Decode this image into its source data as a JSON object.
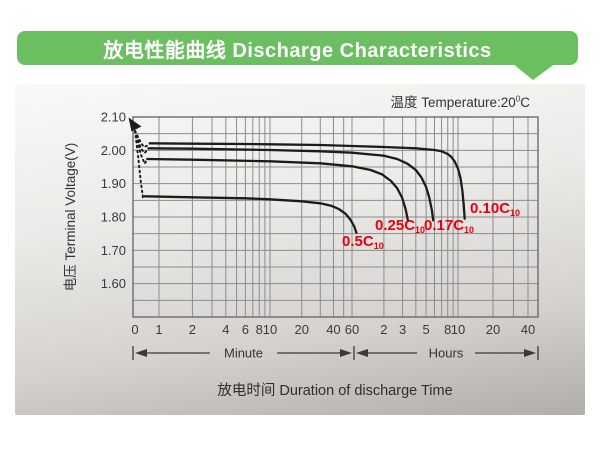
{
  "header": {
    "title": "放电性能曲线 Discharge Characteristics",
    "bg_color": "#6bbf61"
  },
  "panel": {
    "temperature": {
      "prefix": "温度  Temperature:20",
      "sup": "0",
      "suffix": "C"
    }
  },
  "chart_data": {
    "type": "line",
    "title": "放电性能曲线 Discharge Characteristics",
    "xlabel": "放电时间  Duration of discharge Time",
    "ylabel": "电压 Terminal Voltage(V)",
    "temperature_note": "温度 Temperature:20°C",
    "grid": true,
    "colors": {
      "curve": "#1c1c1c",
      "grid": "#8c8c8c",
      "border": "#6b6b6b",
      "label_red": "#e60012",
      "text": "#3a3a3a"
    },
    "x_axis": {
      "scale": "log-piecewise",
      "unit_groups": [
        {
          "label": "Minute"
        },
        {
          "label": "Hours"
        }
      ],
      "ticks_minutes": [
        {
          "t": 0,
          "label": "0"
        },
        {
          "t": 1,
          "label": "1"
        },
        {
          "t": 2,
          "label": "2"
        },
        {
          "t": 4,
          "label": "4"
        },
        {
          "t": 6,
          "label": "6"
        },
        {
          "t": 8,
          "label": "8"
        },
        {
          "t": 10,
          "label": "10"
        },
        {
          "t": 20,
          "label": "20"
        },
        {
          "t": 40,
          "label": "40"
        },
        {
          "t": 60,
          "label": "60"
        },
        {
          "t": 120,
          "label": "2"
        },
        {
          "t": 180,
          "label": "3"
        },
        {
          "t": 300,
          "label": "5"
        },
        {
          "t": 480,
          "label": "8"
        },
        {
          "t": 600,
          "label": "10"
        },
        {
          "t": 1200,
          "label": "20"
        },
        {
          "t": 2400,
          "label": "40"
        }
      ],
      "minor_ticks_minutes": [
        3,
        5,
        7,
        9,
        30,
        50,
        240,
        360,
        420,
        540,
        1800
      ]
    },
    "y_axis": {
      "min": 1.5,
      "max": 2.1,
      "grid_step": 0.05,
      "labeled": [
        2.1,
        2.0,
        1.9,
        1.8,
        1.7,
        1.6
      ]
    },
    "start_point": {
      "t_minutes": 0.08,
      "voltage": 2.058
    },
    "series": [
      {
        "name": "0.10C10",
        "label": "0.10C",
        "label_sub": "10",
        "dip_points": [
          [
            0.08,
            2.058
          ],
          [
            0.28,
            2.026
          ],
          [
            0.42,
            2.01
          ],
          [
            0.55,
            2.014
          ],
          [
            0.65,
            2.021
          ]
        ],
        "points": [
          [
            0.65,
            2.021
          ],
          [
            2,
            2.02
          ],
          [
            6,
            2.019
          ],
          [
            10,
            2.018
          ],
          [
            30,
            2.016
          ],
          [
            60,
            2.013
          ],
          [
            120,
            2.01
          ],
          [
            240,
            2.006
          ],
          [
            360,
            2.001
          ],
          [
            420,
            1.997
          ],
          [
            480,
            1.989
          ],
          [
            520,
            1.98
          ],
          [
            560,
            1.966
          ],
          [
            600,
            1.945
          ],
          [
            630,
            1.917
          ],
          [
            655,
            1.878
          ],
          [
            672,
            1.836
          ],
          [
            685,
            1.795
          ]
        ]
      },
      {
        "name": "0.17C10",
        "label": "0.17C",
        "label_sub": "10",
        "dip_points": [
          [
            0.08,
            2.058
          ],
          [
            0.3,
            2.006
          ],
          [
            0.45,
            1.992
          ],
          [
            0.6,
            2.006
          ]
        ],
        "points": [
          [
            0.6,
            2.006
          ],
          [
            2,
            2.005
          ],
          [
            10,
            2.001
          ],
          [
            30,
            1.997
          ],
          [
            60,
            1.993
          ],
          [
            120,
            1.984
          ],
          [
            160,
            1.974
          ],
          [
            200,
            1.96
          ],
          [
            240,
            1.941
          ],
          [
            272,
            1.918
          ],
          [
            300,
            1.89
          ],
          [
            322,
            1.858
          ],
          [
            340,
            1.82
          ],
          [
            350,
            1.79
          ]
        ]
      },
      {
        "name": "0.25C10",
        "label": "0.25C",
        "label_sub": "10",
        "dip_points": [
          [
            0.08,
            2.058
          ],
          [
            0.3,
            1.988
          ],
          [
            0.45,
            1.96
          ],
          [
            0.55,
            1.974
          ]
        ],
        "points": [
          [
            0.55,
            1.974
          ],
          [
            2,
            1.972
          ],
          [
            10,
            1.967
          ],
          [
            30,
            1.961
          ],
          [
            60,
            1.952
          ],
          [
            90,
            1.941
          ],
          [
            115,
            1.928
          ],
          [
            140,
            1.908
          ],
          [
            160,
            1.886
          ],
          [
            178,
            1.858
          ],
          [
            192,
            1.825
          ],
          [
            202,
            1.79
          ]
        ]
      },
      {
        "name": "0.5C10",
        "label": "0.5C",
        "label_sub": "10",
        "dip_points": [
          [
            0.08,
            2.058
          ],
          [
            0.2,
            1.98
          ],
          [
            0.3,
            1.905
          ],
          [
            0.38,
            1.86
          ],
          [
            0.45,
            1.862
          ]
        ],
        "points": [
          [
            0.45,
            1.862
          ],
          [
            2,
            1.859
          ],
          [
            6,
            1.856
          ],
          [
            10,
            1.853
          ],
          [
            20,
            1.847
          ],
          [
            30,
            1.841
          ],
          [
            38,
            1.834
          ],
          [
            45,
            1.824
          ],
          [
            52,
            1.81
          ],
          [
            58,
            1.792
          ],
          [
            63,
            1.772
          ],
          [
            66,
            1.753
          ]
        ]
      }
    ]
  }
}
